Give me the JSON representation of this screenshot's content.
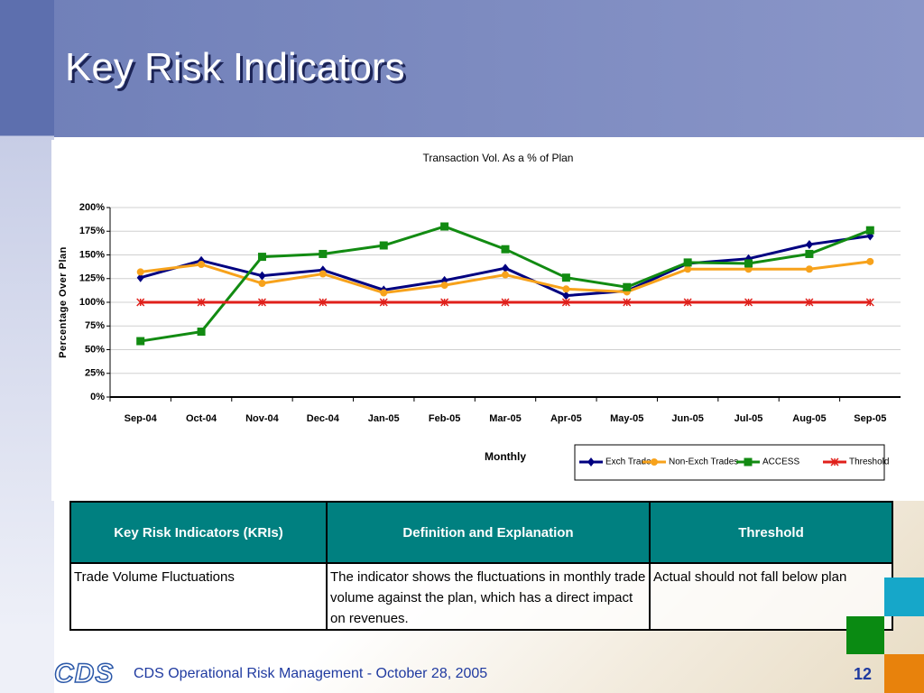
{
  "header": {
    "title": "Key Risk Indicators"
  },
  "chart_data": {
    "type": "line",
    "title": "Transaction Vol. As a % of Plan",
    "x_label": "Monthly",
    "y_label": "Percentage Over Plan",
    "categories": [
      "Sep-04",
      "Oct-04",
      "Nov-04",
      "Dec-04",
      "Jan-05",
      "Feb-05",
      "Mar-05",
      "Apr-05",
      "May-05",
      "Jun-05",
      "Jul-05",
      "Aug-05",
      "Sep-05"
    ],
    "series": [
      {
        "name": "Exch Trades",
        "color": "#000080",
        "marker": "diamond",
        "values": [
          126,
          144,
          128,
          134,
          113,
          123,
          136,
          107,
          112,
          141,
          146,
          161,
          170
        ]
      },
      {
        "name": "Non-Exch Trades",
        "color": "#f7a21b",
        "marker": "circle",
        "values": [
          132,
          140,
          120,
          130,
          110,
          118,
          129,
          114,
          111,
          135,
          135,
          135,
          143
        ]
      },
      {
        "name": "ACCESS",
        "color": "#128b12",
        "marker": "square",
        "values": [
          59,
          69,
          148,
          151,
          160,
          180,
          156,
          126,
          116,
          142,
          141,
          151,
          176
        ]
      },
      {
        "name": "Threshold",
        "color": "#e0201b",
        "marker": "x",
        "values": [
          100,
          100,
          100,
          100,
          100,
          100,
          100,
          100,
          100,
          100,
          100,
          100,
          100
        ]
      }
    ],
    "ylim": [
      0,
      200
    ],
    "yticks": [
      {
        "value": 0,
        "label": "0%"
      },
      {
        "value": 25,
        "label": "25%"
      },
      {
        "value": 50,
        "label": "50%"
      },
      {
        "value": 75,
        "label": "75%"
      },
      {
        "value": 100,
        "label": "100%"
      },
      {
        "value": 125,
        "label": "125%"
      },
      {
        "value": 150,
        "label": "150%"
      },
      {
        "value": 175,
        "label": "175%"
      },
      {
        "value": 200,
        "label": "200%"
      }
    ],
    "grid": true
  },
  "table": {
    "header": [
      "Key Risk Indicators (KRIs)",
      "Definition and Explanation",
      "Threshold"
    ],
    "rows": [
      [
        "Trade Volume Fluctuations",
        "The indicator shows the fluctuations in monthly trade volume against the plan, which has a direct impact on revenues.",
        "Actual should not fall below plan"
      ]
    ]
  },
  "footer": {
    "logo": "CDS",
    "text": "CDS Operational Risk Management - October 28, 2005",
    "page": "12"
  }
}
